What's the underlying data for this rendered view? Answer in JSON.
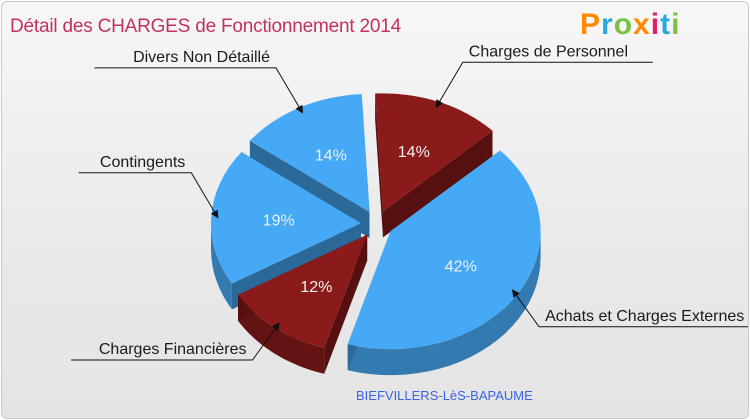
{
  "header": {
    "title": "Détail des CHARGES de Fonctionnement 2014",
    "logo_letters": [
      "P",
      "r",
      "o",
      "x",
      "i",
      "t",
      "i"
    ],
    "logo_colors": [
      "#ff8a00",
      "#2aa9e0",
      "#7cc242",
      "#ff8a00",
      "#e01d6c",
      "#2aa9e0",
      "#7cc242"
    ]
  },
  "footer": {
    "city": "BIEFVILLERS-LèS-BAPAUME"
  },
  "chart_data": {
    "type": "pie",
    "slices": [
      {
        "label": "Charges de Personnel",
        "value": 14,
        "pct_label": "14%",
        "color": "#8b1a1a"
      },
      {
        "label": "Achats et Charges Externes",
        "value": 42,
        "pct_label": "42%",
        "color": "#45a9f5"
      },
      {
        "label": "Charges Financières",
        "value": 12,
        "pct_label": "12%",
        "color": "#8b1a1a"
      },
      {
        "label": "Contingents",
        "value": 19,
        "pct_label": "19%",
        "color": "#45a9f5"
      },
      {
        "label": "Divers Non Détaillé",
        "value": 14,
        "pct_label": "14%",
        "color": "#45a9f5"
      }
    ]
  }
}
